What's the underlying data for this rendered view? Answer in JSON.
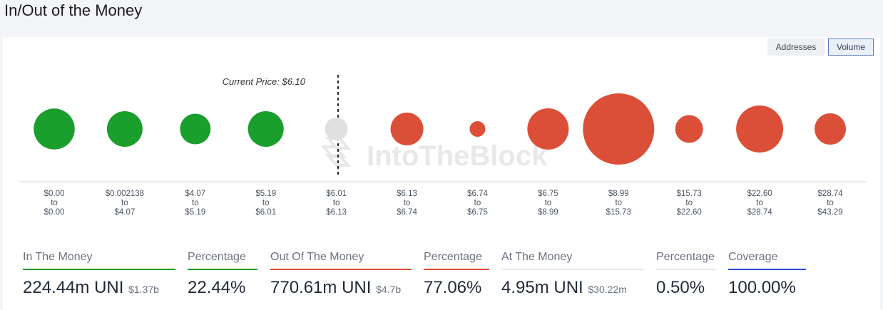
{
  "title": "In/Out of the Money",
  "toggles": {
    "addresses": "Addresses",
    "volume": "Volume"
  },
  "watermark": "IntoTheBlock",
  "chart_data": {
    "type": "bubble",
    "current_price_label": "Current Price: $6.10",
    "buckets": [
      {
        "from": "$0.00",
        "to": "$0.00",
        "status": "in",
        "size": 0.575
      },
      {
        "from": "$0.002138",
        "to": "$4.07",
        "status": "in",
        "size": 0.5
      },
      {
        "from": "$4.07",
        "to": "$5.19",
        "status": "in",
        "size": 0.43
      },
      {
        "from": "$5.19",
        "to": "$6.01",
        "status": "in",
        "size": 0.5
      },
      {
        "from": "$6.01",
        "to": "$6.13",
        "status": "at",
        "size": 0.32
      },
      {
        "from": "$6.13",
        "to": "$6.74",
        "status": "out",
        "size": 0.46
      },
      {
        "from": "$6.74",
        "to": "$6.75",
        "status": "out",
        "size": 0.22
      },
      {
        "from": "$6.75",
        "to": "$8.99",
        "status": "out",
        "size": 0.58
      },
      {
        "from": "$8.99",
        "to": "$15.73",
        "status": "out",
        "size": 1.0
      },
      {
        "from": "$15.73",
        "to": "$22.60",
        "status": "out",
        "size": 0.39
      },
      {
        "from": "$22.60",
        "to": "$28.74",
        "status": "out",
        "size": 0.66
      },
      {
        "from": "$28.74",
        "to": "$43.29",
        "status": "out",
        "size": 0.44
      }
    ],
    "to_label": "to",
    "colors": {
      "in": "#1a9e2c",
      "out": "#db4f38",
      "at": "#e0e0e0"
    }
  },
  "stats": {
    "in": {
      "label": "In The Money",
      "value": "224.44m UNI",
      "sub": "$1.37b"
    },
    "in_pct": {
      "label": "Percentage",
      "value": "22.44%"
    },
    "out": {
      "label": "Out Of The Money",
      "value": "770.61m UNI",
      "sub": "$4.7b"
    },
    "out_pct": {
      "label": "Percentage",
      "value": "77.06%"
    },
    "at": {
      "label": "At The Money",
      "value": "4.95m UNI",
      "sub": "$30.22m"
    },
    "at_pct": {
      "label": "Percentage",
      "value": "0.50%"
    },
    "coverage": {
      "label": "Coverage",
      "value": "100.00%"
    }
  },
  "stat_colors": {
    "green": "#1a9e2c",
    "red": "#db4f38",
    "grey": "#e5e7eb",
    "blue": "#2b4fd8"
  }
}
